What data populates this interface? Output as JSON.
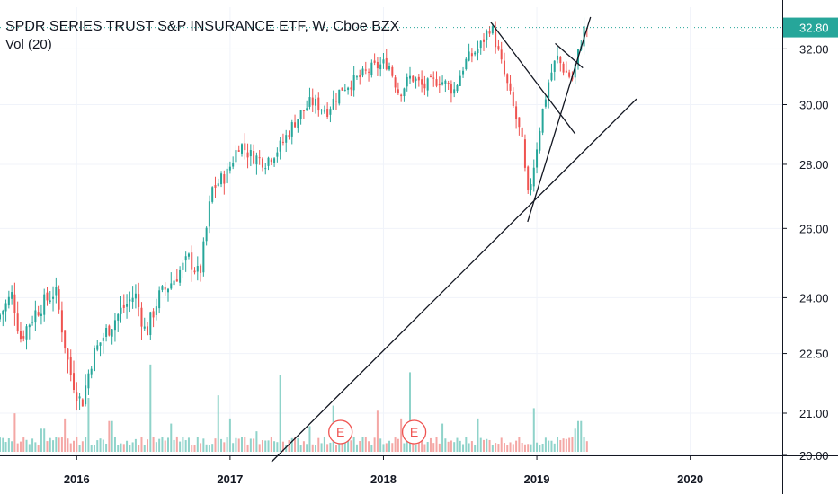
{
  "header": {
    "title": "SPDR SERIES TRUST S&P INSURANCE ETF, W, Cboe BZX",
    "volume_label": "Vol (20)"
  },
  "colors": {
    "up": "#26a69a",
    "down": "#ef5350",
    "vol_up": "#8fd3ca",
    "vol_down": "#f4a7a5",
    "last_price_bg": "#26a69a",
    "last_price_line": "#26a69a",
    "trendline": "#131722",
    "earnings_marker": "#ef5350",
    "axis_line": "#131722",
    "grid": "#f0f3fa"
  },
  "chart_data": {
    "type": "candlestick",
    "x_range": [
      2015.5,
      2020.6
    ],
    "y_scale": "log",
    "y_range": [
      20.0,
      33.3
    ],
    "y_ticks": [
      {
        "value": 32.0,
        "label": "32.00"
      },
      {
        "value": 30.0,
        "label": "30.00"
      },
      {
        "value": 28.0,
        "label": "28.00"
      },
      {
        "value": 26.0,
        "label": "26.00"
      },
      {
        "value": 24.0,
        "label": "24.00"
      },
      {
        "value": 22.5,
        "label": "22.50"
      },
      {
        "value": 21.0,
        "label": "21.00"
      },
      {
        "value": 20.0,
        "label": "20.00"
      }
    ],
    "x_ticks": [
      {
        "value": 2016,
        "label": "2016"
      },
      {
        "value": 2017,
        "label": "2017"
      },
      {
        "value": 2018,
        "label": "2018"
      },
      {
        "value": 2019,
        "label": "2019"
      },
      {
        "value": 2020,
        "label": "2020"
      }
    ],
    "last_price": {
      "value": 32.8,
      "label": "32.80"
    },
    "price_path": [
      [
        2015.5,
        23.4
      ],
      [
        2015.6,
        24.1
      ],
      [
        2015.65,
        22.9
      ],
      [
        2015.75,
        23.6
      ],
      [
        2015.88,
        24.2
      ],
      [
        2015.97,
        22.1
      ],
      [
        2016.05,
        21.2
      ],
      [
        2016.12,
        22.4
      ],
      [
        2016.2,
        23.0
      ],
      [
        2016.3,
        23.6
      ],
      [
        2016.4,
        24.1
      ],
      [
        2016.47,
        23.0
      ],
      [
        2016.55,
        24.0
      ],
      [
        2016.65,
        24.5
      ],
      [
        2016.75,
        25.1
      ],
      [
        2016.82,
        24.6
      ],
      [
        2016.86,
        25.8
      ],
      [
        2016.9,
        27.2
      ],
      [
        2017.0,
        27.7
      ],
      [
        2017.08,
        28.7
      ],
      [
        2017.15,
        28.3
      ],
      [
        2017.25,
        28.1
      ],
      [
        2017.35,
        28.6
      ],
      [
        2017.45,
        29.5
      ],
      [
        2017.55,
        30.1
      ],
      [
        2017.65,
        29.8
      ],
      [
        2017.75,
        30.6
      ],
      [
        2017.85,
        30.9
      ],
      [
        2017.95,
        31.3
      ],
      [
        2018.05,
        31.5
      ],
      [
        2018.12,
        30.4
      ],
      [
        2018.2,
        31.0
      ],
      [
        2018.28,
        30.6
      ],
      [
        2018.38,
        30.9
      ],
      [
        2018.48,
        30.5
      ],
      [
        2018.55,
        31.5
      ],
      [
        2018.65,
        32.1
      ],
      [
        2018.72,
        32.9
      ],
      [
        2018.78,
        31.6
      ],
      [
        2018.84,
        30.4
      ],
      [
        2018.88,
        29.6
      ],
      [
        2018.92,
        28.8
      ],
      [
        2018.96,
        26.9
      ],
      [
        2019.0,
        28.0
      ],
      [
        2019.05,
        29.6
      ],
      [
        2019.1,
        30.9
      ],
      [
        2019.15,
        31.7
      ],
      [
        2019.2,
        31.2
      ],
      [
        2019.25,
        30.9
      ],
      [
        2019.3,
        32.1
      ],
      [
        2019.33,
        32.8
      ]
    ],
    "volume_spikes": [
      {
        "x": 2015.6,
        "v": 1.5
      },
      {
        "x": 2015.78,
        "v": 0.9
      },
      {
        "x": 2015.92,
        "v": 1.3
      },
      {
        "x": 2016.07,
        "v": 2.1
      },
      {
        "x": 2016.22,
        "v": 1.2
      },
      {
        "x": 2016.48,
        "v": 3.4
      },
      {
        "x": 2016.62,
        "v": 1.1
      },
      {
        "x": 2016.92,
        "v": 2.2
      },
      {
        "x": 2017.0,
        "v": 1.3
      },
      {
        "x": 2017.18,
        "v": 0.8
      },
      {
        "x": 2017.32,
        "v": 3.0
      },
      {
        "x": 2017.52,
        "v": 1.0
      },
      {
        "x": 2017.68,
        "v": 1.8
      },
      {
        "x": 2017.96,
        "v": 1.6
      },
      {
        "x": 2018.12,
        "v": 1.3
      },
      {
        "x": 2018.17,
        "v": 3.1
      },
      {
        "x": 2018.38,
        "v": 1.1
      },
      {
        "x": 2018.62,
        "v": 1.3
      },
      {
        "x": 2018.98,
        "v": 1.7
      },
      {
        "x": 2019.25,
        "v": 0.9
      },
      {
        "x": 2019.28,
        "v": 1.2
      }
    ],
    "trendlines": [
      {
        "name": "long-term-support",
        "from": [
          2017.27,
          19.85
        ],
        "to": [
          2019.65,
          30.2
        ]
      },
      {
        "name": "channel-upper",
        "from": [
          2018.7,
          33.0
        ],
        "to": [
          2019.25,
          29.0
        ]
      },
      {
        "name": "recovery-line",
        "from": [
          2018.94,
          26.2
        ],
        "to": [
          2019.35,
          33.2
        ]
      },
      {
        "name": "flag-upper",
        "from": [
          2019.12,
          32.2
        ],
        "to": [
          2019.3,
          31.3
        ]
      }
    ],
    "earnings_markers": [
      {
        "x": 2017.72,
        "label": "E"
      },
      {
        "x": 2018.2,
        "label": "E"
      }
    ]
  }
}
